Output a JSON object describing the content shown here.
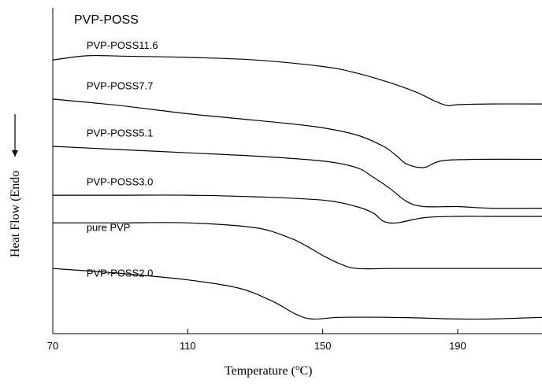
{
  "chart_data": {
    "type": "line",
    "title": "PVP-POSS",
    "xlabel_main": "Temperature (",
    "xlabel_sup": "o",
    "xlabel_tail": "C)",
    "ylabel": "Heat Flow (Endo",
    "xlim": [
      70,
      215
    ],
    "xticks": [
      70,
      110,
      150,
      190
    ],
    "tick_labels": [
      "70",
      "110",
      "150",
      "190"
    ],
    "grid": false,
    "series": [
      {
        "name": "PVP-POSS11.6",
        "x": [
          70,
          80,
          90,
          110,
          130,
          150,
          160,
          170,
          178,
          183,
          187,
          190,
          200,
          215
        ],
        "y": [
          0.84,
          0.853,
          0.852,
          0.848,
          0.84,
          0.82,
          0.8,
          0.77,
          0.74,
          0.715,
          0.7,
          0.703,
          0.705,
          0.705
        ]
      },
      {
        "name": "PVP-POSS7.7",
        "x": [
          70,
          90,
          110,
          130,
          148,
          160,
          168,
          172,
          175,
          180,
          185,
          195,
          215
        ],
        "y": [
          0.72,
          0.7,
          0.675,
          0.655,
          0.635,
          0.61,
          0.575,
          0.545,
          0.52,
          0.51,
          0.53,
          0.535,
          0.535
        ]
      },
      {
        "name": "PVP-POSS5.1",
        "x": [
          70,
          90,
          110,
          130,
          150,
          160,
          165,
          170,
          175,
          180,
          190,
          200,
          215
        ],
        "y": [
          0.575,
          0.565,
          0.555,
          0.545,
          0.53,
          0.51,
          0.48,
          0.445,
          0.405,
          0.39,
          0.39,
          0.385,
          0.385
        ]
      },
      {
        "name": "pure PVP",
        "x": [
          70,
          90,
          110,
          130,
          150,
          160,
          165,
          168,
          172,
          180,
          190,
          200,
          215
        ],
        "y": [
          0.425,
          0.425,
          0.425,
          0.42,
          0.41,
          0.39,
          0.37,
          0.345,
          0.34,
          0.356,
          0.36,
          0.36,
          0.36
        ]
      },
      {
        "name": "PVP-POSS3.0",
        "x": [
          70,
          90,
          110,
          130,
          140,
          145,
          150,
          155,
          160,
          170,
          180,
          200,
          215
        ],
        "y": [
          0.34,
          0.34,
          0.34,
          0.325,
          0.295,
          0.27,
          0.24,
          0.215,
          0.2,
          0.2,
          0.2,
          0.2,
          0.2
        ]
      },
      {
        "name": "PVP-POSS2.0",
        "x": [
          70,
          90,
          110,
          125,
          135,
          142,
          147,
          155,
          170,
          190,
          200,
          215
        ],
        "y": [
          0.2,
          0.185,
          0.165,
          0.14,
          0.1,
          0.06,
          0.045,
          0.05,
          0.05,
          0.045,
          0.045,
          0.05
        ]
      }
    ],
    "series_labels": [
      {
        "text": "PVP-POSS11.6",
        "x": 80,
        "y": 0.875
      },
      {
        "text": "PVP-POSS7.7",
        "x": 80,
        "y": 0.75
      },
      {
        "text": "PVP-POSS5.1",
        "x": 80,
        "y": 0.605
      },
      {
        "text": "PVP-POSS3.0",
        "x": 80,
        "y": 0.455
      },
      {
        "text": "pure PVP",
        "x": 80,
        "y": 0.315
      },
      {
        "text": "PVP-POSS2.0",
        "x": 80,
        "y": 0.175
      }
    ]
  }
}
